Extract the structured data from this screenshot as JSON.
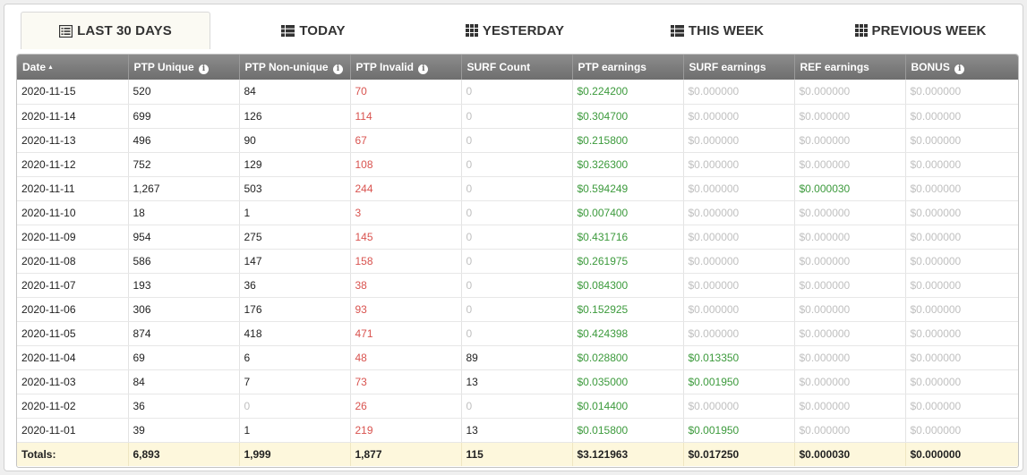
{
  "tabs": [
    {
      "label": "LAST 30 DAYS",
      "icon": "list-icon"
    },
    {
      "label": "TODAY",
      "icon": "table-icon"
    },
    {
      "label": "YESTERDAY",
      "icon": "grid-icon"
    },
    {
      "label": "THIS WEEK",
      "icon": "table-icon"
    },
    {
      "label": "PREVIOUS WEEK",
      "icon": "grid-icon"
    }
  ],
  "active_tab": "LAST 30 DAYS",
  "colors": {
    "invalid": "#d9534f",
    "earnings": "#3c9a3c",
    "zero": "#c0c0c0",
    "header": "#7d7d7d",
    "totals_bg": "#fdf7dc"
  },
  "table": {
    "headers": [
      "Date",
      "PTP Unique",
      "PTP Non-unique",
      "PTP Invalid",
      "SURF Count",
      "PTP earnings",
      "SURF earnings",
      "REF earnings",
      "BONUS"
    ],
    "rows": [
      [
        "2020-11-15",
        "520",
        "84",
        "70",
        "0",
        "$0.224200",
        "$0.000000",
        "$0.000000",
        "$0.000000"
      ],
      [
        "2020-11-14",
        "699",
        "126",
        "114",
        "0",
        "$0.304700",
        "$0.000000",
        "$0.000000",
        "$0.000000"
      ],
      [
        "2020-11-13",
        "496",
        "90",
        "67",
        "0",
        "$0.215800",
        "$0.000000",
        "$0.000000",
        "$0.000000"
      ],
      [
        "2020-11-12",
        "752",
        "129",
        "108",
        "0",
        "$0.326300",
        "$0.000000",
        "$0.000000",
        "$0.000000"
      ],
      [
        "2020-11-11",
        "1,267",
        "503",
        "244",
        "0",
        "$0.594249",
        "$0.000000",
        "$0.000030",
        "$0.000000"
      ],
      [
        "2020-11-10",
        "18",
        "1",
        "3",
        "0",
        "$0.007400",
        "$0.000000",
        "$0.000000",
        "$0.000000"
      ],
      [
        "2020-11-09",
        "954",
        "275",
        "145",
        "0",
        "$0.431716",
        "$0.000000",
        "$0.000000",
        "$0.000000"
      ],
      [
        "2020-11-08",
        "586",
        "147",
        "158",
        "0",
        "$0.261975",
        "$0.000000",
        "$0.000000",
        "$0.000000"
      ],
      [
        "2020-11-07",
        "193",
        "36",
        "38",
        "0",
        "$0.084300",
        "$0.000000",
        "$0.000000",
        "$0.000000"
      ],
      [
        "2020-11-06",
        "306",
        "176",
        "93",
        "0",
        "$0.152925",
        "$0.000000",
        "$0.000000",
        "$0.000000"
      ],
      [
        "2020-11-05",
        "874",
        "418",
        "471",
        "0",
        "$0.424398",
        "$0.000000",
        "$0.000000",
        "$0.000000"
      ],
      [
        "2020-11-04",
        "69",
        "6",
        "48",
        "89",
        "$0.028800",
        "$0.013350",
        "$0.000000",
        "$0.000000"
      ],
      [
        "2020-11-03",
        "84",
        "7",
        "73",
        "13",
        "$0.035000",
        "$0.001950",
        "$0.000000",
        "$0.000000"
      ],
      [
        "2020-11-02",
        "36",
        "0",
        "26",
        "0",
        "$0.014400",
        "$0.000000",
        "$0.000000",
        "$0.000000"
      ],
      [
        "2020-11-01",
        "39",
        "1",
        "219",
        "13",
        "$0.015800",
        "$0.001950",
        "$0.000000",
        "$0.000000"
      ]
    ],
    "totals": [
      "Totals:",
      "6,893",
      "1,999",
      "1,877",
      "115",
      "$3.121963",
      "$0.017250",
      "$0.000030",
      "$0.000000"
    ]
  }
}
